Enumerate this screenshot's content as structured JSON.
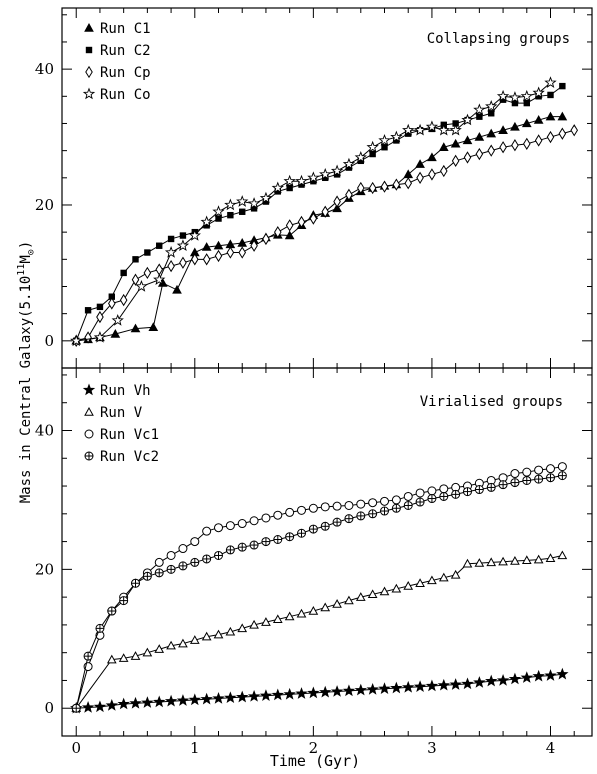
{
  "figure": {
    "ylabel_main": "Mass in Central Galaxy(5.10",
    "ylabel_exp": "11",
    "ylabel_unit": "M",
    "ylabel_sub": "⊙",
    "ylabel_close": ")",
    "xlabel": "Time (Gyr)"
  },
  "chart_data": [
    {
      "type": "line",
      "title": "Collapsing groups",
      "xlim": [
        -0.12,
        4.35
      ],
      "ylim": [
        -4,
        49
      ],
      "x_ticks": [
        0,
        1,
        2,
        3,
        4
      ],
      "x_tick_labels": [
        "",
        "",
        "",
        "",
        ""
      ],
      "y_ticks": [
        0,
        20,
        40
      ],
      "y_tick_labels": [
        "0",
        "20",
        "40"
      ],
      "grid": false,
      "legend_position": "top-left",
      "series": [
        {
          "name": "Run C1",
          "marker": "filled-triangle",
          "x": [
            0,
            0.1,
            0.2,
            0.33,
            0.5,
            0.65,
            0.73,
            0.85,
            1.0,
            1.1,
            1.2,
            1.3,
            1.4,
            1.5,
            1.6,
            1.7,
            1.8,
            1.9,
            2.0,
            2.1,
            2.2,
            2.3,
            2.4,
            2.5,
            2.6,
            2.7,
            2.8,
            2.9,
            3.0,
            3.1,
            3.2,
            3.3,
            3.4,
            3.5,
            3.6,
            3.7,
            3.8,
            3.9,
            4.0,
            4.1
          ],
          "y": [
            0,
            0.2,
            0.5,
            1.0,
            1.8,
            2.0,
            8.5,
            7.5,
            13.0,
            13.8,
            14.0,
            14.2,
            14.4,
            14.8,
            15.2,
            15.6,
            15.5,
            17.0,
            18.5,
            18.8,
            19.5,
            21.0,
            22.0,
            22.5,
            22.8,
            23.0,
            24.5,
            26.0,
            27.0,
            28.5,
            29.0,
            29.5,
            30.0,
            30.5,
            31.0,
            31.5,
            32.0,
            32.5,
            33.0,
            33.0
          ]
        },
        {
          "name": "Run C2",
          "marker": "filled-square",
          "x": [
            0,
            0.1,
            0.2,
            0.3,
            0.4,
            0.5,
            0.6,
            0.7,
            0.8,
            0.9,
            1.0,
            1.1,
            1.2,
            1.3,
            1.4,
            1.5,
            1.6,
            1.7,
            1.8,
            1.9,
            2.0,
            2.1,
            2.2,
            2.3,
            2.4,
            2.5,
            2.6,
            2.7,
            2.8,
            2.9,
            3.0,
            3.1,
            3.2,
            3.3,
            3.4,
            3.5,
            3.6,
            3.7,
            3.8,
            3.9,
            4.0,
            4.1
          ],
          "y": [
            0,
            4.5,
            5.0,
            6.5,
            10.0,
            12.0,
            13.0,
            14.0,
            15.0,
            15.5,
            16.0,
            17.0,
            18.0,
            18.5,
            19.0,
            19.5,
            20.5,
            22.0,
            22.5,
            23.0,
            23.5,
            24.0,
            24.5,
            25.5,
            26.5,
            27.5,
            28.5,
            29.5,
            30.5,
            31.0,
            31.2,
            31.8,
            32.0,
            32.5,
            33.0,
            33.5,
            35.5,
            35.0,
            35.0,
            36.0,
            36.2,
            37.5
          ]
        },
        {
          "name": "Run Cp",
          "marker": "open-diamond",
          "x": [
            0,
            0.1,
            0.2,
            0.3,
            0.4,
            0.5,
            0.6,
            0.7,
            0.8,
            0.9,
            1.0,
            1.1,
            1.2,
            1.3,
            1.4,
            1.5,
            1.6,
            1.7,
            1.8,
            1.9,
            2.0,
            2.1,
            2.2,
            2.3,
            2.4,
            2.5,
            2.6,
            2.7,
            2.8,
            2.9,
            3.0,
            3.1,
            3.2,
            3.3,
            3.4,
            3.5,
            3.6,
            3.7,
            3.8,
            3.9,
            4.0,
            4.1,
            4.2
          ],
          "y": [
            0,
            0.5,
            3.5,
            5.5,
            6.0,
            9.0,
            10.0,
            10.5,
            11.0,
            11.5,
            12.0,
            12.0,
            12.5,
            13.0,
            13.0,
            14.0,
            15.0,
            16.0,
            17.0,
            17.5,
            18.0,
            19.0,
            20.5,
            21.5,
            22.5,
            22.5,
            22.7,
            23.0,
            23.2,
            24.0,
            24.5,
            25.0,
            26.5,
            27.0,
            27.5,
            28.0,
            28.5,
            28.8,
            29.0,
            29.5,
            30.0,
            30.5,
            31.0
          ]
        },
        {
          "name": "Run Co",
          "marker": "open-star",
          "x": [
            0,
            0.2,
            0.35,
            0.55,
            0.7,
            0.8,
            0.9,
            1.0,
            1.1,
            1.2,
            1.3,
            1.4,
            1.5,
            1.6,
            1.7,
            1.8,
            1.9,
            2.0,
            2.1,
            2.2,
            2.3,
            2.4,
            2.5,
            2.6,
            2.7,
            2.8,
            2.9,
            3.0,
            3.1,
            3.2,
            3.3,
            3.4,
            3.5,
            3.6,
            3.7,
            3.8,
            3.9,
            4.0
          ],
          "y": [
            0,
            0.5,
            3.0,
            8.0,
            9.0,
            13.0,
            14.0,
            15.5,
            17.5,
            19.0,
            20.0,
            20.5,
            20.2,
            21.0,
            22.5,
            23.5,
            23.5,
            24.0,
            24.5,
            25.0,
            26.0,
            27.0,
            28.5,
            29.5,
            30.0,
            31.0,
            31.0,
            31.5,
            31.0,
            31.0,
            32.5,
            34.0,
            34.5,
            36.0,
            35.8,
            36.0,
            36.5,
            38.0
          ]
        }
      ]
    },
    {
      "type": "line",
      "title": "Virialised groups",
      "xlabel": "Time (Gyr)",
      "xlim": [
        -0.12,
        4.35
      ],
      "ylim": [
        -4,
        49
      ],
      "x_ticks": [
        0,
        1,
        2,
        3,
        4
      ],
      "x_tick_labels": [
        "0",
        "1",
        "2",
        "3",
        "4"
      ],
      "y_ticks": [
        0,
        20,
        40
      ],
      "y_tick_labels": [
        "0",
        "20",
        "40"
      ],
      "grid": false,
      "legend_position": "top-left",
      "series": [
        {
          "name": "Run Vh",
          "marker": "filled-star",
          "x": [
            0,
            0.1,
            0.2,
            0.3,
            0.4,
            0.5,
            0.6,
            0.7,
            0.8,
            0.9,
            1.0,
            1.1,
            1.2,
            1.3,
            1.4,
            1.5,
            1.6,
            1.7,
            1.8,
            1.9,
            2.0,
            2.1,
            2.2,
            2.3,
            2.4,
            2.5,
            2.6,
            2.7,
            2.8,
            2.9,
            3.0,
            3.1,
            3.2,
            3.3,
            3.4,
            3.5,
            3.6,
            3.7,
            3.8,
            3.9,
            4.0,
            4.1
          ],
          "y": [
            0,
            0.1,
            0.2,
            0.4,
            0.6,
            0.7,
            0.8,
            0.9,
            1.0,
            1.1,
            1.2,
            1.3,
            1.4,
            1.5,
            1.6,
            1.7,
            1.8,
            1.9,
            2.0,
            2.1,
            2.2,
            2.3,
            2.4,
            2.5,
            2.6,
            2.7,
            2.8,
            2.9,
            3.0,
            3.1,
            3.2,
            3.3,
            3.4,
            3.5,
            3.7,
            3.9,
            4.0,
            4.2,
            4.4,
            4.6,
            4.7,
            4.9
          ]
        },
        {
          "name": "Run V",
          "marker": "open-triangle",
          "x": [
            0,
            0.3,
            0.4,
            0.5,
            0.6,
            0.7,
            0.8,
            0.9,
            1.0,
            1.1,
            1.2,
            1.3,
            1.4,
            1.5,
            1.6,
            1.7,
            1.8,
            1.9,
            2.0,
            2.1,
            2.2,
            2.3,
            2.4,
            2.5,
            2.6,
            2.7,
            2.8,
            2.9,
            3.0,
            3.1,
            3.2,
            3.3,
            3.4,
            3.5,
            3.6,
            3.7,
            3.8,
            3.9,
            4.0,
            4.1
          ],
          "y": [
            0,
            7.0,
            7.2,
            7.5,
            8.0,
            8.5,
            9.0,
            9.3,
            9.8,
            10.3,
            10.6,
            11.0,
            11.5,
            12.0,
            12.4,
            12.8,
            13.2,
            13.6,
            14.0,
            14.5,
            15.0,
            15.5,
            16.0,
            16.4,
            16.8,
            17.2,
            17.6,
            18.0,
            18.4,
            18.8,
            19.2,
            20.8,
            20.9,
            21.0,
            21.1,
            21.2,
            21.3,
            21.4,
            21.6,
            22.0
          ]
        },
        {
          "name": "Run Vc1",
          "marker": "open-circle",
          "x": [
            0,
            0.1,
            0.2,
            0.3,
            0.4,
            0.5,
            0.6,
            0.7,
            0.8,
            0.9,
            1.0,
            1.1,
            1.2,
            1.3,
            1.4,
            1.5,
            1.6,
            1.7,
            1.8,
            1.9,
            2.0,
            2.1,
            2.2,
            2.3,
            2.4,
            2.5,
            2.6,
            2.7,
            2.8,
            2.9,
            3.0,
            3.1,
            3.2,
            3.3,
            3.4,
            3.5,
            3.6,
            3.7,
            3.8,
            3.9,
            4.0,
            4.1
          ],
          "y": [
            0,
            6.0,
            10.5,
            14.0,
            16.0,
            18.0,
            19.5,
            21.0,
            22.0,
            23.0,
            24.0,
            25.5,
            26.0,
            26.3,
            26.6,
            27.0,
            27.4,
            27.8,
            28.2,
            28.5,
            28.8,
            29.0,
            29.1,
            29.2,
            29.4,
            29.6,
            29.8,
            30.0,
            30.5,
            31.0,
            31.3,
            31.6,
            31.8,
            32.0,
            32.4,
            32.8,
            33.2,
            33.8,
            34.0,
            34.3,
            34.5,
            34.8
          ]
        },
        {
          "name": "Run Vc2",
          "marker": "open-circle-cross",
          "x": [
            0,
            0.1,
            0.2,
            0.3,
            0.4,
            0.5,
            0.6,
            0.7,
            0.8,
            0.9,
            1.0,
            1.1,
            1.2,
            1.3,
            1.4,
            1.5,
            1.6,
            1.7,
            1.8,
            1.9,
            2.0,
            2.1,
            2.2,
            2.3,
            2.4,
            2.5,
            2.6,
            2.7,
            2.8,
            2.9,
            3.0,
            3.1,
            3.2,
            3.3,
            3.4,
            3.5,
            3.6,
            3.7,
            3.8,
            3.9,
            4.0,
            4.1
          ],
          "y": [
            0,
            7.5,
            11.5,
            14.0,
            15.5,
            18.0,
            19.0,
            19.5,
            20.0,
            20.5,
            21.0,
            21.5,
            22.0,
            22.8,
            23.2,
            23.5,
            24.0,
            24.3,
            24.7,
            25.2,
            25.8,
            26.2,
            26.8,
            27.3,
            27.7,
            28.0,
            28.4,
            28.8,
            29.2,
            29.7,
            30.2,
            30.5,
            30.8,
            31.2,
            31.5,
            31.8,
            32.2,
            32.5,
            32.8,
            33.0,
            33.2,
            33.5
          ]
        }
      ]
    }
  ]
}
